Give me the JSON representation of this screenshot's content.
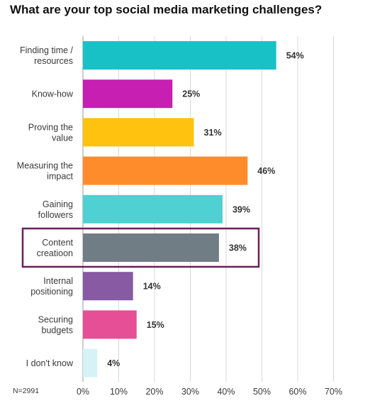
{
  "chart_data": {
    "type": "bar",
    "orientation": "horizontal",
    "title": "What are your top social media marketing challenges?",
    "categories": [
      [
        "Finding time /",
        "resources"
      ],
      [
        "Know-how"
      ],
      [
        "Proving the",
        "value"
      ],
      [
        "Measuring the",
        "impact"
      ],
      [
        "Gaining",
        "followers"
      ],
      [
        "Content",
        "creatioon"
      ],
      [
        "Internal",
        "positioning"
      ],
      [
        "Securing",
        "budgets"
      ],
      [
        "I don't know"
      ]
    ],
    "values": [
      54,
      25,
      31,
      46,
      39,
      38,
      14,
      15,
      4
    ],
    "value_labels": [
      "54%",
      "25%",
      "31%",
      "46%",
      "39%",
      "38%",
      "14%",
      "15%",
      "4%"
    ],
    "colors": [
      "#17c1c6",
      "#c61fb2",
      "#ffc20e",
      "#ff8c2b",
      "#4fd0d3",
      "#717d84",
      "#875aa3",
      "#e64f95",
      "#d5f3f7"
    ],
    "highlighted_index": 5,
    "highlight_color": "#6b1f5a",
    "xlim": [
      0,
      70
    ],
    "xticks": [
      "0%",
      "10%",
      "20%",
      "30%",
      "40%",
      "50%",
      "60%",
      "70%"
    ],
    "grid": true,
    "note": "N=2991"
  }
}
